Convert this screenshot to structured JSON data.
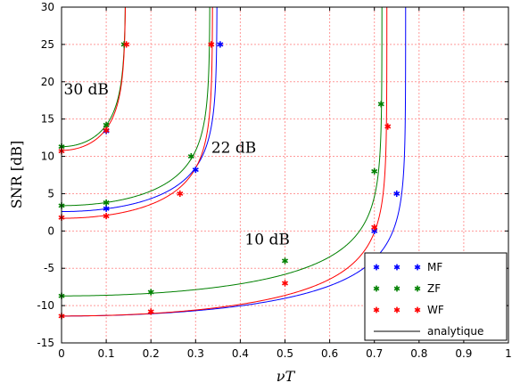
{
  "chart_data": {
    "type": "line",
    "xlabel": "νT",
    "ylabel": "SNR [dB]",
    "xlim": [
      0,
      1
    ],
    "ylim": [
      -15,
      30
    ],
    "xticks": [
      "0",
      "0.1",
      "0.2",
      "0.3",
      "0.4",
      "0.5",
      "0.6",
      "0.7",
      "0.8",
      "0.9",
      "1"
    ],
    "yticks": [
      "-15",
      "-10",
      "-5",
      "0",
      "5",
      "10",
      "15",
      "20",
      "25",
      "30"
    ],
    "grid": true,
    "legend_position": "bottom-right",
    "annotations": [
      {
        "text": "30 dB",
        "x": 0.005,
        "y": 18.3
      },
      {
        "text": "22 dB",
        "x": 0.335,
        "y": 10.5
      },
      {
        "text": "10 dB",
        "x": 0.41,
        "y": -1.8
      }
    ],
    "colors": {
      "MF": "#0000ff",
      "ZF": "#008000",
      "WF": "#ff0000",
      "analytique": "#000000",
      "grid": "#ff9999"
    },
    "series": [
      {
        "name": "MF",
        "kind": "markers",
        "points": [
          [
            0.1,
            13.4
          ],
          [
            0.1,
            3.0
          ],
          [
            0.3,
            8.2
          ],
          [
            0.355,
            25.0
          ],
          [
            0.7,
            0.0
          ],
          [
            0.75,
            5.0
          ]
        ]
      },
      {
        "name": "ZF",
        "kind": "markers",
        "points": [
          [
            0.0,
            11.3
          ],
          [
            0.1,
            14.2
          ],
          [
            0.14,
            25.0
          ],
          [
            0.0,
            3.4
          ],
          [
            0.1,
            3.8
          ],
          [
            0.29,
            10.0
          ],
          [
            0.0,
            -8.7
          ],
          [
            0.2,
            -8.2
          ],
          [
            0.5,
            -4.0
          ],
          [
            0.7,
            8.0
          ],
          [
            0.715,
            17.0
          ]
        ]
      },
      {
        "name": "WF",
        "kind": "markers",
        "points": [
          [
            0.0,
            10.7
          ],
          [
            0.1,
            13.5
          ],
          [
            0.145,
            25.0
          ],
          [
            0.0,
            1.8
          ],
          [
            0.1,
            2.0
          ],
          [
            0.265,
            5.0
          ],
          [
            0.335,
            25.0
          ],
          [
            0.0,
            -11.4
          ],
          [
            0.2,
            -10.8
          ],
          [
            0.5,
            -7.0
          ],
          [
            0.7,
            0.5
          ],
          [
            0.73,
            14.0
          ]
        ]
      },
      {
        "name": "analytique",
        "kind": "curves",
        "curves": [
          {
            "color": "green",
            "base": 11.3,
            "asymptote": 0.1435
          },
          {
            "color": "red",
            "base": 10.8,
            "asymptote": 0.1435
          },
          {
            "color": "green",
            "base": 3.4,
            "asymptote": 0.332
          },
          {
            "color": "blue",
            "base": 2.6,
            "asymptote": 0.348
          },
          {
            "color": "red",
            "base": 1.7,
            "asymptote": 0.338
          },
          {
            "color": "green",
            "base": -8.7,
            "asymptote": 0.717
          },
          {
            "color": "blue",
            "base": -11.4,
            "asymptote": 0.77
          },
          {
            "color": "red",
            "base": -11.4,
            "asymptote": 0.728
          }
        ]
      }
    ]
  }
}
